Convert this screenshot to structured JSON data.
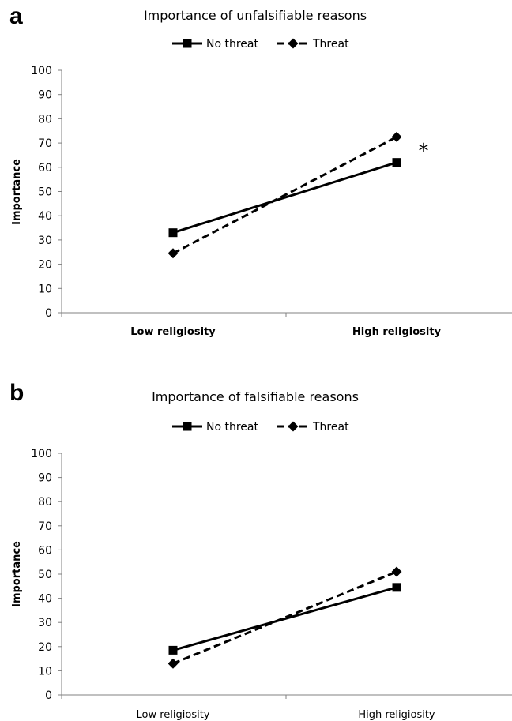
{
  "chart_data": [
    {
      "panel": "a",
      "type": "line",
      "title": "Importance of unfalsifiable reasons",
      "categories": [
        "Low religiosity",
        "High religiosity"
      ],
      "ylabel": "Importance",
      "xlabel": "",
      "ylim": [
        0,
        100
      ],
      "yticks": [
        "0",
        "10",
        "20",
        "30",
        "40",
        "50",
        "60",
        "70",
        "80",
        "90",
        "100"
      ],
      "grid": false,
      "legend_position": "top",
      "series": [
        {
          "name": "No threat",
          "values": [
            33,
            62
          ],
          "style": "solid",
          "marker": "square",
          "color": "#000000"
        },
        {
          "name": "Threat",
          "values": [
            24.5,
            72.5
          ],
          "style": "dashed",
          "marker": "diamond",
          "color": "#000000"
        }
      ],
      "annotation": "*"
    },
    {
      "panel": "b",
      "type": "line",
      "title": "Importance of falsifiable reasons",
      "categories": [
        "Low religiosity",
        "High religiosity"
      ],
      "ylabel": "Importance",
      "xlabel": "",
      "ylim": [
        0,
        100
      ],
      "yticks": [
        "0",
        "10",
        "20",
        "30",
        "40",
        "50",
        "60",
        "70",
        "80",
        "90",
        "100"
      ],
      "grid": false,
      "legend_position": "top",
      "series": [
        {
          "name": "No threat",
          "values": [
            18.5,
            44.5
          ],
          "style": "solid",
          "marker": "square",
          "color": "#000000"
        },
        {
          "name": "Threat",
          "values": [
            13,
            51
          ],
          "style": "dashed",
          "marker": "diamond",
          "color": "#000000"
        }
      ],
      "annotation": ""
    }
  ]
}
